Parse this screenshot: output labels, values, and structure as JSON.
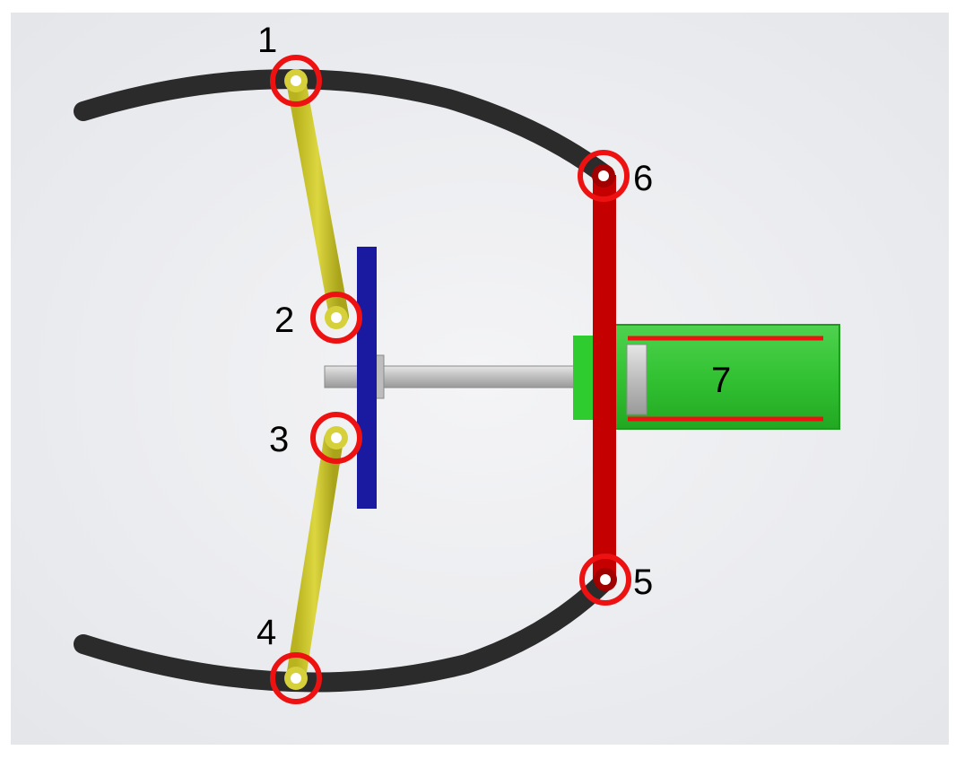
{
  "labels": {
    "j1": "1",
    "j2": "2",
    "j3": "3",
    "j4": "4",
    "j5": "5",
    "j6": "6",
    "cylinder": "7"
  },
  "colors": {
    "jaw": "#2b2b2b",
    "yellow_link": "#c9c42a",
    "blue_plate": "#1a1aa0",
    "red_link": "#c40000",
    "cylinder": "#2ecc2e",
    "rod": "#c8c8c8",
    "marker": "#ee1111"
  }
}
